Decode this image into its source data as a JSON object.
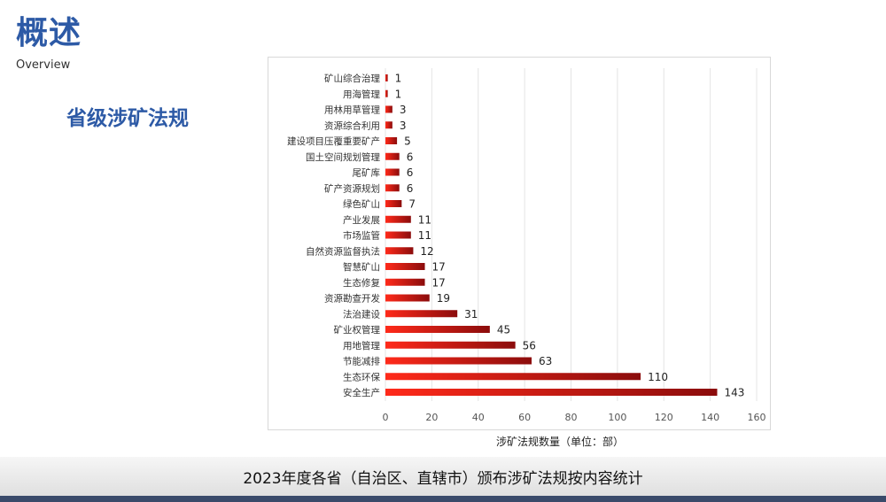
{
  "header": {
    "title": "概述",
    "subtitle": "Overview",
    "section_heading": "省级涉矿法规"
  },
  "caption": "2023年度各省（自治区、直辖市）颁布涉矿法规按内容统计",
  "colors": {
    "accent": "#2d5aa6",
    "bar_light": "#ff2a1a",
    "bar_dark": "#8b0c0c"
  },
  "chart_data": {
    "type": "bar",
    "orientation": "horizontal",
    "categories": [
      "矿山综合治理",
      "用海管理",
      "用林用草管理",
      "资源综合利用",
      "建设项目压覆重要矿产",
      "国土空间规划管理",
      "尾矿库",
      "矿产资源规划",
      "绿色矿山",
      "产业发展",
      "市场监管",
      "自然资源监督执法",
      "智慧矿山",
      "生态修复",
      "资源勘查开发",
      "法治建设",
      "矿业权管理",
      "用地管理",
      "节能减排",
      "生态环保",
      "安全生产"
    ],
    "values": [
      1,
      1,
      3,
      3,
      5,
      6,
      6,
      6,
      7,
      11,
      11,
      12,
      17,
      17,
      19,
      31,
      45,
      56,
      63,
      110,
      143
    ],
    "xlabel": "涉矿法规数量（单位：部）",
    "ylabel": "",
    "xlim": [
      0,
      160
    ],
    "xticks": [
      0,
      20,
      40,
      60,
      80,
      100,
      120,
      140,
      160
    ],
    "grid": "vertical",
    "legend": "none"
  }
}
